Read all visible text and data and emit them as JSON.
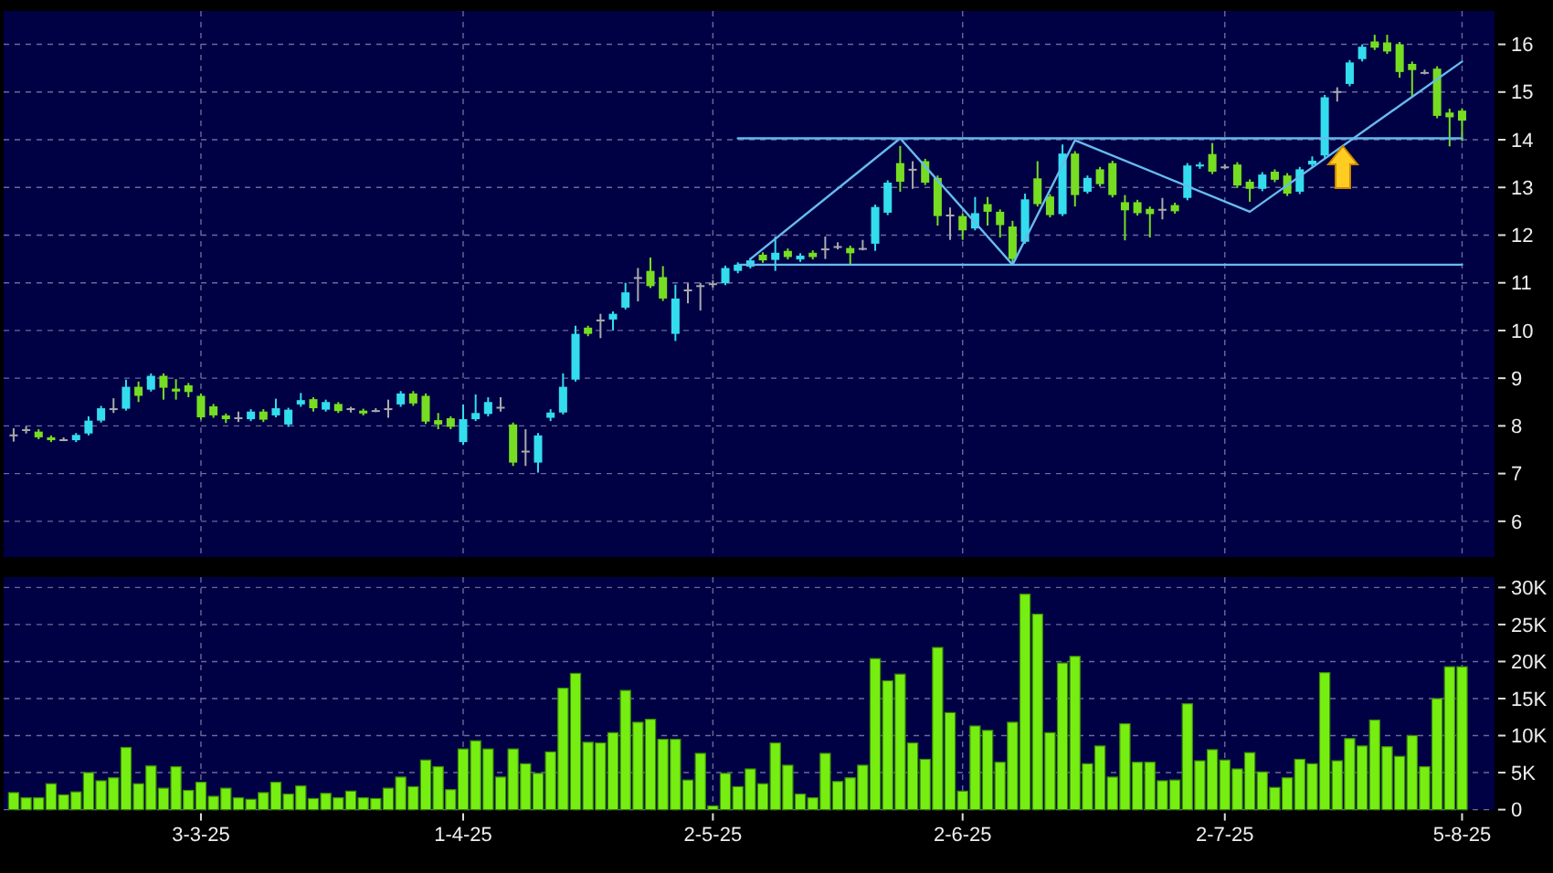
{
  "chart_data": [
    {
      "type": "candlestick",
      "categories": [
        null,
        null,
        null,
        null,
        null,
        null,
        null,
        null,
        null,
        null,
        null,
        null,
        null,
        null,
        null,
        null,
        null,
        null,
        null,
        null,
        null,
        null,
        null,
        null,
        null,
        null,
        null,
        null,
        null,
        null,
        null,
        null,
        null,
        null,
        null,
        null,
        null,
        null,
        null,
        null,
        null,
        null,
        null,
        null,
        null,
        null,
        null,
        null,
        null,
        null,
        null,
        null,
        null,
        null,
        null,
        null,
        null,
        null,
        null,
        null,
        null,
        null,
        null,
        null,
        null,
        null,
        null,
        null,
        null,
        null,
        null,
        null,
        null,
        null,
        null,
        null,
        null,
        null,
        null,
        null,
        null,
        null,
        null,
        null,
        null,
        null,
        null,
        null,
        null,
        null,
        null,
        null,
        null,
        null,
        null,
        null,
        null,
        null,
        null,
        null,
        null,
        null,
        null,
        null,
        null,
        null,
        null,
        null,
        null,
        null,
        null,
        null,
        null,
        null,
        null,
        null,
        null
      ],
      "ohlc": [
        [
          7.82,
          7.95,
          7.67,
          7.82
        ],
        [
          7.93,
          7.99,
          7.84,
          7.93
        ],
        [
          7.88,
          7.93,
          7.72,
          7.76
        ],
        [
          7.76,
          7.8,
          7.66,
          7.7
        ],
        [
          7.72,
          7.76,
          7.68,
          7.72
        ],
        [
          7.7,
          7.85,
          7.66,
          7.81
        ],
        [
          7.84,
          8.2,
          7.8,
          8.11
        ],
        [
          8.11,
          8.42,
          8.07,
          8.37
        ],
        [
          8.37,
          8.58,
          8.27,
          8.37
        ],
        [
          8.36,
          8.97,
          8.32,
          8.82
        ],
        [
          8.82,
          8.93,
          8.5,
          8.63
        ],
        [
          8.76,
          9.1,
          8.72,
          9.05
        ],
        [
          9.05,
          9.1,
          8.55,
          8.8
        ],
        [
          8.78,
          8.98,
          8.55,
          8.72
        ],
        [
          8.85,
          8.9,
          8.6,
          8.71
        ],
        [
          8.63,
          8.68,
          8.13,
          8.18
        ],
        [
          8.41,
          8.46,
          8.17,
          8.22
        ],
        [
          8.22,
          8.26,
          8.06,
          8.14
        ],
        [
          8.18,
          8.3,
          8.08,
          8.18
        ],
        [
          8.14,
          8.35,
          8.1,
          8.3
        ],
        [
          8.3,
          8.35,
          8.08,
          8.13
        ],
        [
          8.22,
          8.57,
          8.18,
          8.37
        ],
        [
          8.03,
          8.38,
          7.98,
          8.34
        ],
        [
          8.45,
          8.69,
          8.4,
          8.54
        ],
        [
          8.56,
          8.6,
          8.3,
          8.37
        ],
        [
          8.34,
          8.55,
          8.3,
          8.5
        ],
        [
          8.46,
          8.5,
          8.27,
          8.31
        ],
        [
          8.37,
          8.4,
          8.28,
          8.37
        ],
        [
          8.32,
          8.36,
          8.22,
          8.26
        ],
        [
          8.33,
          8.37,
          8.29,
          8.33
        ],
        [
          8.37,
          8.55,
          8.17,
          8.37
        ],
        [
          8.45,
          8.73,
          8.4,
          8.68
        ],
        [
          8.68,
          8.73,
          8.42,
          8.47
        ],
        [
          8.63,
          8.68,
          8.04,
          8.09
        ],
        [
          8.12,
          8.27,
          7.93,
          8.03
        ],
        [
          8.16,
          8.2,
          7.93,
          7.98
        ],
        [
          7.66,
          8.45,
          7.6,
          8.14
        ],
        [
          8.14,
          8.66,
          8.1,
          8.27
        ],
        [
          8.25,
          8.6,
          8.2,
          8.5
        ],
        [
          8.4,
          8.6,
          8.3,
          8.4
        ],
        [
          8.03,
          8.07,
          7.16,
          7.23
        ],
        [
          7.48,
          7.93,
          7.16,
          7.48
        ],
        [
          7.23,
          7.85,
          7.02,
          7.8
        ],
        [
          8.17,
          8.35,
          8.1,
          8.28
        ],
        [
          8.28,
          9.1,
          8.24,
          8.82
        ],
        [
          8.97,
          10.1,
          8.93,
          9.93
        ],
        [
          10.06,
          10.1,
          9.88,
          9.93
        ],
        [
          10.23,
          10.35,
          9.84,
          10.23
        ],
        [
          10.23,
          10.4,
          10.0,
          10.35
        ],
        [
          10.48,
          11.0,
          10.44,
          10.8
        ],
        [
          11.12,
          11.31,
          10.61,
          11.12
        ],
        [
          11.25,
          11.53,
          10.89,
          10.93
        ],
        [
          11.12,
          11.35,
          10.62,
          10.67
        ],
        [
          9.93,
          10.96,
          9.78,
          10.67
        ],
        [
          10.86,
          10.99,
          10.57,
          10.86
        ],
        [
          10.95,
          11.0,
          10.42,
          10.95
        ],
        [
          10.99,
          11.05,
          10.9,
          10.99
        ],
        [
          10.99,
          11.36,
          10.95,
          11.31
        ],
        [
          11.25,
          11.43,
          11.2,
          11.38
        ],
        [
          11.34,
          11.52,
          11.3,
          11.47
        ],
        [
          11.59,
          11.64,
          11.42,
          11.47
        ],
        [
          11.48,
          11.97,
          11.25,
          11.63
        ],
        [
          11.67,
          11.72,
          11.49,
          11.54
        ],
        [
          11.49,
          11.62,
          11.44,
          11.57
        ],
        [
          11.63,
          11.68,
          11.49,
          11.54
        ],
        [
          11.72,
          11.97,
          11.5,
          11.72
        ],
        [
          11.77,
          11.85,
          11.7,
          11.77
        ],
        [
          11.73,
          11.78,
          11.38,
          11.62
        ],
        [
          11.73,
          11.9,
          11.68,
          11.73
        ],
        [
          11.82,
          12.64,
          11.67,
          12.59
        ],
        [
          12.47,
          13.15,
          12.42,
          13.1
        ],
        [
          13.51,
          13.87,
          12.91,
          13.12
        ],
        [
          13.39,
          13.55,
          12.97,
          13.39
        ],
        [
          13.55,
          13.6,
          13.05,
          13.1
        ],
        [
          13.2,
          13.25,
          12.2,
          12.4
        ],
        [
          12.43,
          12.58,
          11.9,
          12.43
        ],
        [
          12.4,
          12.45,
          11.9,
          12.1
        ],
        [
          12.14,
          12.8,
          12.1,
          12.46
        ],
        [
          12.65,
          12.8,
          12.2,
          12.49
        ],
        [
          12.49,
          12.54,
          11.95,
          12.21
        ],
        [
          12.18,
          12.3,
          11.38,
          11.5
        ],
        [
          11.86,
          12.87,
          11.82,
          12.75
        ],
        [
          13.19,
          13.55,
          12.6,
          12.65
        ],
        [
          12.81,
          12.86,
          12.37,
          12.42
        ],
        [
          12.44,
          13.9,
          12.4,
          13.71
        ],
        [
          13.71,
          13.76,
          12.6,
          12.84
        ],
        [
          12.91,
          13.25,
          12.87,
          13.2
        ],
        [
          13.38,
          13.43,
          13.02,
          13.07
        ],
        [
          13.51,
          13.56,
          12.79,
          12.84
        ],
        [
          12.69,
          12.84,
          11.89,
          12.52
        ],
        [
          12.69,
          12.74,
          12.41,
          12.46
        ],
        [
          12.55,
          12.6,
          11.95,
          12.44
        ],
        [
          12.55,
          12.78,
          12.33,
          12.55
        ],
        [
          12.63,
          12.68,
          12.45,
          12.5
        ],
        [
          12.78,
          13.51,
          12.73,
          13.46
        ],
        [
          13.44,
          13.53,
          13.39,
          13.48
        ],
        [
          13.7,
          13.93,
          13.28,
          13.33
        ],
        [
          13.44,
          13.49,
          13.39,
          13.44
        ],
        [
          13.48,
          13.53,
          12.99,
          13.04
        ],
        [
          13.12,
          13.17,
          12.7,
          12.97
        ],
        [
          12.97,
          13.32,
          12.92,
          13.27
        ],
        [
          13.33,
          13.38,
          13.11,
          13.16
        ],
        [
          13.25,
          13.3,
          12.82,
          12.87
        ],
        [
          12.91,
          13.43,
          12.86,
          13.38
        ],
        [
          13.48,
          13.65,
          13.43,
          13.56
        ],
        [
          13.67,
          14.94,
          13.62,
          14.89
        ],
        [
          15.02,
          15.1,
          14.8,
          15.02
        ],
        [
          15.17,
          15.67,
          15.12,
          15.62
        ],
        [
          15.69,
          16.0,
          15.64,
          15.95
        ],
        [
          16.06,
          16.2,
          15.88,
          15.93
        ],
        [
          16.04,
          16.2,
          15.8,
          15.85
        ],
        [
          16.0,
          16.05,
          15.3,
          15.42
        ],
        [
          15.59,
          15.64,
          14.9,
          15.46
        ],
        [
          15.42,
          15.47,
          15.37,
          15.42
        ],
        [
          15.49,
          15.54,
          14.45,
          14.5
        ],
        [
          14.57,
          14.65,
          13.86,
          14.47
        ],
        [
          14.61,
          14.66,
          13.97,
          14.4
        ]
      ],
      "colors": [
        "#aaaaaa",
        "#aaaaaa",
        "#77dd22",
        "#77dd22",
        "#aaaaaa",
        "#33ddee",
        "#33ddee",
        "#33ddee",
        "#aaaaaa",
        "#33ddee",
        "#77dd22",
        "#33ddee",
        "#77dd22",
        "#77dd22",
        "#77dd22",
        "#77dd22",
        "#77dd22",
        "#77dd22",
        "#aaaaaa",
        "#33ddee",
        "#77dd22",
        "#33ddee",
        "#33ddee",
        "#33ddee",
        "#77dd22",
        "#33ddee",
        "#77dd22",
        "#aaaaaa",
        "#77dd22",
        "#aaaaaa",
        "#aaaaaa",
        "#33ddee",
        "#77dd22",
        "#77dd22",
        "#77dd22",
        "#77dd22",
        "#33ddee",
        "#33ddee",
        "#33ddee",
        "#aaaaaa",
        "#77dd22",
        "#aaaaaa",
        "#33ddee",
        "#33ddee",
        "#33ddee",
        "#33ddee",
        "#77dd22",
        "#aaaaaa",
        "#33ddee",
        "#33ddee",
        "#aaaaaa",
        "#77dd22",
        "#77dd22",
        "#33ddee",
        "#aaaaaa",
        "#aaaaaa",
        "#aaaaaa",
        "#33ddee",
        "#33ddee",
        "#33ddee",
        "#77dd22",
        "#33ddee",
        "#77dd22",
        "#33ddee",
        "#77dd22",
        "#aaaaaa",
        "#aaaaaa",
        "#77dd22",
        "#aaaaaa",
        "#33ddee",
        "#33ddee",
        "#77dd22",
        "#aaaaaa",
        "#77dd22",
        "#77dd22",
        "#aaaaaa",
        "#77dd22",
        "#33ddee",
        "#77dd22",
        "#77dd22",
        "#77dd22",
        "#33ddee",
        "#77dd22",
        "#77dd22",
        "#33ddee",
        "#77dd22",
        "#33ddee",
        "#77dd22",
        "#77dd22",
        "#77dd22",
        "#77dd22",
        "#77dd22",
        "#aaaaaa",
        "#77dd22",
        "#33ddee",
        "#33ddee",
        "#77dd22",
        "#aaaaaa",
        "#77dd22",
        "#77dd22",
        "#33ddee",
        "#77dd22",
        "#77dd22",
        "#33ddee",
        "#33ddee",
        "#33ddee",
        "#aaaaaa",
        "#33ddee",
        "#33ddee",
        "#77dd22",
        "#77dd22",
        "#77dd22",
        "#77dd22",
        "#aaaaaa",
        "#77dd22",
        "#77dd22",
        "#77dd22"
      ],
      "series": [
        {
          "type": "line",
          "color": "#66bbee",
          "values": [
            null,
            null,
            null,
            null,
            null,
            null,
            null,
            null,
            null,
            null,
            null,
            null,
            null,
            null,
            null,
            null,
            null,
            null,
            null,
            null,
            null,
            null,
            null,
            null,
            null,
            null,
            null,
            null,
            null,
            null,
            null,
            null,
            null,
            null,
            null,
            null,
            null,
            null,
            null,
            null,
            null,
            null,
            null,
            null,
            null,
            null,
            null,
            null,
            null,
            null,
            null,
            null,
            null,
            null,
            null,
            null,
            null,
            null,
            null,
            11.5,
            null,
            null,
            null,
            null,
            null,
            null,
            null,
            null,
            null,
            null,
            null,
            14.03,
            null,
            null,
            null,
            null,
            null,
            null,
            null,
            null,
            11.38,
            null,
            null,
            null,
            null,
            13.99,
            null,
            null,
            null,
            null,
            null,
            null,
            null,
            null,
            null,
            null,
            null,
            null,
            null,
            12.49,
            null,
            null,
            null,
            null,
            null,
            null,
            null,
            null,
            null,
            null,
            null,
            null,
            null,
            null,
            null,
            null,
            15.64
          ]
        },
        {
          "type": "line",
          "color": "#66bbee",
          "values": [
            null,
            null,
            null,
            null,
            null,
            null,
            null,
            null,
            null,
            null,
            null,
            null,
            null,
            null,
            null,
            null,
            null,
            null,
            null,
            null,
            null,
            null,
            null,
            null,
            null,
            null,
            null,
            null,
            null,
            null,
            null,
            null,
            null,
            null,
            null,
            null,
            null,
            null,
            null,
            null,
            null,
            null,
            null,
            null,
            null,
            null,
            null,
            null,
            null,
            null,
            null,
            null,
            null,
            null,
            null,
            null,
            null,
            null,
            14.03,
            null,
            null,
            null,
            null,
            null,
            null,
            null,
            null,
            null,
            null,
            null,
            null,
            null,
            null,
            null,
            null,
            null,
            null,
            null,
            null,
            null,
            null,
            null,
            null,
            null,
            null,
            null,
            null,
            null,
            null,
            null,
            null,
            null,
            null,
            null,
            null,
            null,
            null,
            null,
            null,
            null,
            null,
            null,
            null,
            null,
            null,
            null,
            null,
            null,
            null,
            null,
            null,
            null,
            null,
            null,
            null,
            null,
            14.03
          ]
        },
        {
          "type": "line",
          "color": "#66bbee",
          "values": [
            null,
            null,
            null,
            null,
            null,
            null,
            null,
            null,
            null,
            null,
            null,
            null,
            null,
            null,
            null,
            null,
            null,
            null,
            null,
            null,
            null,
            null,
            null,
            null,
            null,
            null,
            null,
            null,
            null,
            null,
            null,
            null,
            null,
            null,
            null,
            null,
            null,
            null,
            null,
            null,
            null,
            null,
            null,
            null,
            null,
            null,
            null,
            null,
            null,
            null,
            null,
            null,
            null,
            null,
            null,
            null,
            null,
            null,
            11.38,
            null,
            null,
            null,
            null,
            null,
            null,
            null,
            null,
            null,
            null,
            null,
            null,
            null,
            null,
            null,
            null,
            null,
            null,
            null,
            null,
            null,
            null,
            null,
            null,
            null,
            null,
            null,
            null,
            null,
            null,
            null,
            null,
            null,
            null,
            null,
            null,
            null,
            null,
            null,
            null,
            null,
            null,
            null,
            null,
            null,
            null,
            null,
            null,
            null,
            null,
            null,
            null,
            null,
            null,
            null,
            null,
            null,
            11.38
          ]
        }
      ],
      "ylim": [
        5.25,
        16.7
      ],
      "yticks": [
        6,
        7,
        8,
        9,
        10,
        11,
        12,
        13,
        14,
        15,
        16
      ],
      "grid": true,
      "tick_labels": "y"
    },
    {
      "type": "bar",
      "categories": [
        null,
        null,
        null,
        null,
        null,
        null,
        null,
        null,
        null,
        null,
        null,
        null,
        null,
        null,
        null,
        "3-3-25",
        null,
        null,
        null,
        null,
        null,
        null,
        null,
        null,
        null,
        null,
        null,
        null,
        null,
        null,
        null,
        null,
        null,
        null,
        null,
        null,
        "1-4-25",
        null,
        null,
        null,
        null,
        null,
        null,
        null,
        null,
        null,
        null,
        null,
        null,
        null,
        null,
        null,
        null,
        null,
        null,
        null,
        "2-5-25",
        null,
        null,
        null,
        null,
        null,
        null,
        null,
        null,
        null,
        null,
        null,
        null,
        null,
        null,
        null,
        null,
        null,
        null,
        null,
        "2-6-25",
        null,
        null,
        null,
        null,
        null,
        null,
        null,
        null,
        null,
        null,
        null,
        null,
        null,
        null,
        null,
        null,
        null,
        null,
        null,
        null,
        "2-7-25",
        null,
        null,
        null,
        null,
        null,
        null,
        null,
        null,
        null,
        null,
        null,
        null,
        null,
        null,
        null,
        null,
        null,
        null,
        "5-8-25"
      ],
      "values": [
        2.3,
        1.6,
        1.6,
        3.5,
        2.0,
        2.4,
        5.0,
        3.9,
        4.3,
        8.4,
        3.5,
        5.9,
        2.9,
        5.8,
        2.6,
        3.7,
        1.8,
        2.9,
        1.6,
        1.4,
        2.3,
        3.7,
        2.1,
        3.2,
        1.5,
        2.2,
        1.6,
        2.5,
        1.6,
        1.5,
        2.9,
        4.4,
        3.1,
        6.7,
        5.8,
        2.7,
        8.2,
        9.3,
        8.2,
        4.4,
        8.2,
        6.2,
        4.9,
        7.8,
        16.4,
        18.4,
        9.1,
        9.0,
        10.4,
        16.1,
        11.8,
        12.2,
        9.5,
        9.5,
        4.0,
        7.6,
        0.5,
        4.9,
        3.1,
        5.5,
        3.5,
        9.0,
        6.0,
        2.1,
        1.6,
        7.6,
        3.8,
        4.3,
        6.0,
        20.4,
        17.4,
        18.3,
        9.0,
        6.8,
        21.9,
        13.1,
        2.5,
        11.3,
        10.7,
        6.4,
        11.8,
        29.1,
        26.4,
        10.4,
        19.8,
        20.7,
        6.2,
        8.6,
        4.4,
        11.6,
        6.4,
        6.4,
        3.9,
        4.0,
        14.3,
        6.6,
        8.1,
        6.7,
        5.5,
        7.7,
        5.1,
        3.0,
        4.3,
        6.8,
        6.2,
        18.5,
        6.6,
        9.6,
        8.6,
        12.1,
        8.5,
        7.2,
        10.0,
        5.8,
        15.0,
        19.3,
        19.3
      ],
      "color": "#77ee11",
      "ylim": [
        0,
        31.4
      ],
      "yticks": [
        0,
        {
          "value": 5,
          "label": "5K"
        },
        {
          "value": 10,
          "label": "10K"
        },
        {
          "value": 15,
          "label": "15K"
        },
        {
          "value": 20,
          "label": "20K"
        },
        {
          "value": 25,
          "label": "25K"
        },
        {
          "value": 30,
          "label": "30K"
        }
      ],
      "grid": true
    }
  ]
}
